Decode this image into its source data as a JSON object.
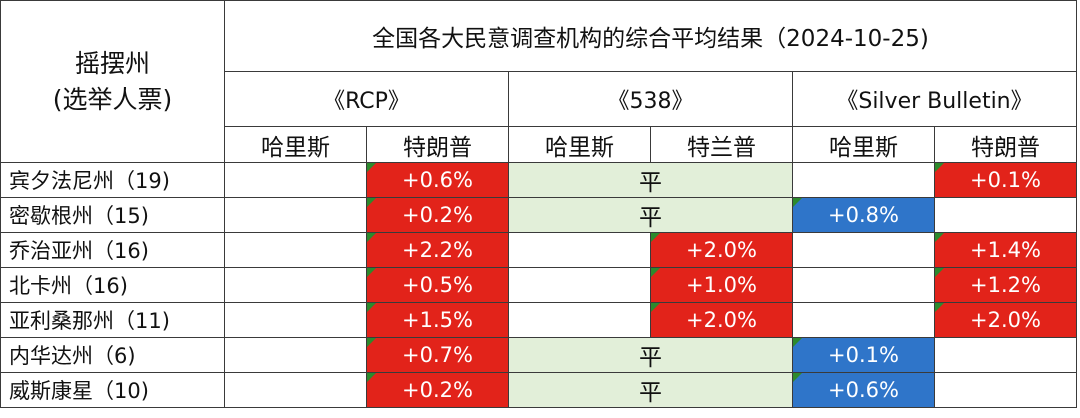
{
  "header": {
    "corner_line1": "摇摆州",
    "corner_line2": "(选举人票)",
    "title": "全国各大民意调查机构的综合平均结果（2024-10-25)",
    "sources": [
      "《RCP》",
      "《538》",
      "《Silver Bulletin》"
    ],
    "candidates": [
      "哈里斯",
      "特朗普",
      "哈里斯",
      "特兰普",
      "哈里斯",
      "特朗普"
    ]
  },
  "colors": {
    "trump_red": "#e2231a",
    "harris_blue": "#2f75c9",
    "tie_green": "#e2efd9",
    "corner_marker": "#2d8a2d"
  },
  "rows": [
    {
      "state": "宾夕法尼州（19)",
      "rcp": {
        "harris": "",
        "trump": "+0.6%"
      },
      "f538": {
        "tie": "平"
      },
      "silver": {
        "harris": "",
        "trump": "+0.1%"
      }
    },
    {
      "state": "密歇根州（15)",
      "rcp": {
        "harris": "",
        "trump": "+0.2%"
      },
      "f538": {
        "tie": "平"
      },
      "silver": {
        "harris": "+0.8%",
        "trump": ""
      }
    },
    {
      "state": "乔治亚州（16)",
      "rcp": {
        "harris": "",
        "trump": "+2.2%"
      },
      "f538": {
        "harris": "",
        "trump": "+2.0%"
      },
      "silver": {
        "harris": "",
        "trump": "+1.4%"
      }
    },
    {
      "state": "北卡州（16)",
      "rcp": {
        "harris": "",
        "trump": "+0.5%"
      },
      "f538": {
        "harris": "",
        "trump": "+1.0%"
      },
      "silver": {
        "harris": "",
        "trump": "+1.2%"
      }
    },
    {
      "state": "亚利桑那州（11)",
      "rcp": {
        "harris": "",
        "trump": "+1.5%"
      },
      "f538": {
        "harris": "",
        "trump": "+2.0%"
      },
      "silver": {
        "harris": "",
        "trump": "+2.0%"
      }
    },
    {
      "state": "内华达州（6)",
      "rcp": {
        "harris": "",
        "trump": "+0.7%"
      },
      "f538": {
        "tie": "平"
      },
      "silver": {
        "harris": "+0.1%",
        "trump": ""
      }
    },
    {
      "state": "威斯康星（10)",
      "rcp": {
        "harris": "",
        "trump": "+0.2%"
      },
      "f538": {
        "tie": "平"
      },
      "silver": {
        "harris": "+0.6%",
        "trump": ""
      }
    }
  ]
}
